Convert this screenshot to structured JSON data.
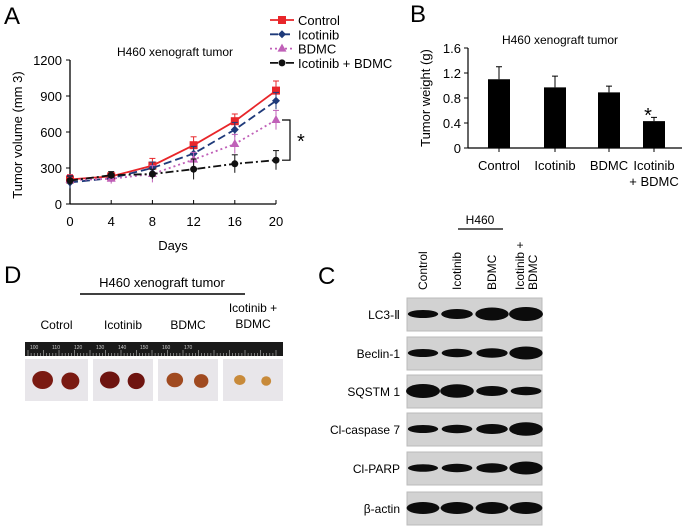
{
  "panels": {
    "A": "A",
    "B": "B",
    "C": "C",
    "D": "D"
  },
  "chart_data": [
    {
      "type": "line",
      "panel": "A",
      "title": "H460 xenograft tumor",
      "xlabel": "Days",
      "ylabel": "Tumor volume (mm 3)",
      "x": [
        0,
        4,
        8,
        12,
        16,
        20
      ],
      "xticks": [
        "0",
        "4",
        "8",
        "12",
        "16",
        "20"
      ],
      "yticks": [
        "0",
        "300",
        "600",
        "900",
        "1200"
      ],
      "xlim": [
        0,
        20
      ],
      "ylim": [
        0,
        1200
      ],
      "legend_position": "top-right",
      "series": [
        {
          "name": "Control",
          "color": "#e8262a",
          "dash": "",
          "marker": "square",
          "values": [
            205,
            230,
            320,
            490,
            690,
            945
          ],
          "errors": [
            40,
            35,
            60,
            70,
            60,
            80
          ]
        },
        {
          "name": "Icotinib",
          "color": "#1f3a7a",
          "dash": "8,4",
          "marker": "diamond",
          "values": [
            180,
            215,
            300,
            420,
            620,
            860
          ],
          "errors": [
            50,
            30,
            50,
            60,
            60,
            70
          ]
        },
        {
          "name": "BDMC",
          "color": "#c060b8",
          "dash": "2,3",
          "marker": "triangle",
          "values": [
            200,
            210,
            250,
            370,
            500,
            700
          ],
          "errors": [
            40,
            40,
            70,
            60,
            80,
            80
          ]
        },
        {
          "name": "Icotinib + BDMC",
          "color": "#111111",
          "dash": "8,3,2,3",
          "marker": "circle",
          "values": [
            195,
            240,
            250,
            290,
            335,
            365
          ],
          "errors": [
            40,
            30,
            40,
            85,
            75,
            80
          ]
        }
      ],
      "annotation": "*"
    },
    {
      "type": "bar",
      "panel": "B",
      "title": "H460 xenograft tumor",
      "ylabel": "Tumor weight (g)",
      "categories": [
        "Control",
        "Icotinib",
        "BDMC",
        "Icotinib\n+ BDMC"
      ],
      "category_lines": [
        [
          "Control"
        ],
        [
          "Icotinib"
        ],
        [
          "BDMC"
        ],
        [
          "Icotinib",
          "+ BDMC"
        ]
      ],
      "values": [
        1.1,
        0.97,
        0.89,
        0.43
      ],
      "errors": [
        0.2,
        0.18,
        0.1,
        0.06
      ],
      "yticks": [
        "0",
        "0.4",
        "0.8",
        "1.2",
        "1.6"
      ],
      "ylim": [
        0,
        1.6
      ],
      "bar_color": "#000000",
      "annotation": "*"
    }
  ],
  "blot": {
    "cell_line": "H460",
    "lanes": [
      "Control",
      "Icotinib",
      "BDMC",
      "Icotinib + BDMC"
    ],
    "lane_lines": [
      [
        "Control"
      ],
      [
        "Icotinib"
      ],
      [
        "BDMC"
      ],
      [
        "Icotinib +",
        "BDMC"
      ]
    ],
    "rows": [
      {
        "label": "LC3-Ⅱ",
        "intensity": [
          0.4,
          0.6,
          0.9,
          1.0
        ]
      },
      {
        "label": "Beclin-1",
        "intensity": [
          0.4,
          0.45,
          0.55,
          0.9
        ]
      },
      {
        "label": "SQSTM 1",
        "intensity": [
          1.0,
          0.95,
          0.6,
          0.45
        ]
      },
      {
        "label": "Cl-caspase 7",
        "intensity": [
          0.4,
          0.45,
          0.6,
          0.95
        ]
      },
      {
        "label": "Cl-PARP",
        "intensity": [
          0.35,
          0.45,
          0.55,
          0.9
        ]
      },
      {
        "label": "β-actin",
        "intensity": [
          0.8,
          0.8,
          0.8,
          0.8
        ]
      }
    ]
  },
  "photos": {
    "title": "H460 xenograft tumor",
    "groups": [
      {
        "label": [
          "Cotrol"
        ],
        "size": 1.0,
        "color": "#7a1a12"
      },
      {
        "label": [
          "Icotinib"
        ],
        "size": 0.95,
        "color": "#6e1410"
      },
      {
        "label": [
          "BDMC"
        ],
        "size": 0.8,
        "color": "#a04a20"
      },
      {
        "label": [
          "Icotinib +",
          "BDMC"
        ],
        "size": 0.55,
        "color": "#c88a3a"
      }
    ],
    "ruler_ticks": [
      "100",
      "110",
      "120",
      "130",
      "140",
      "150",
      "160",
      "170"
    ]
  }
}
